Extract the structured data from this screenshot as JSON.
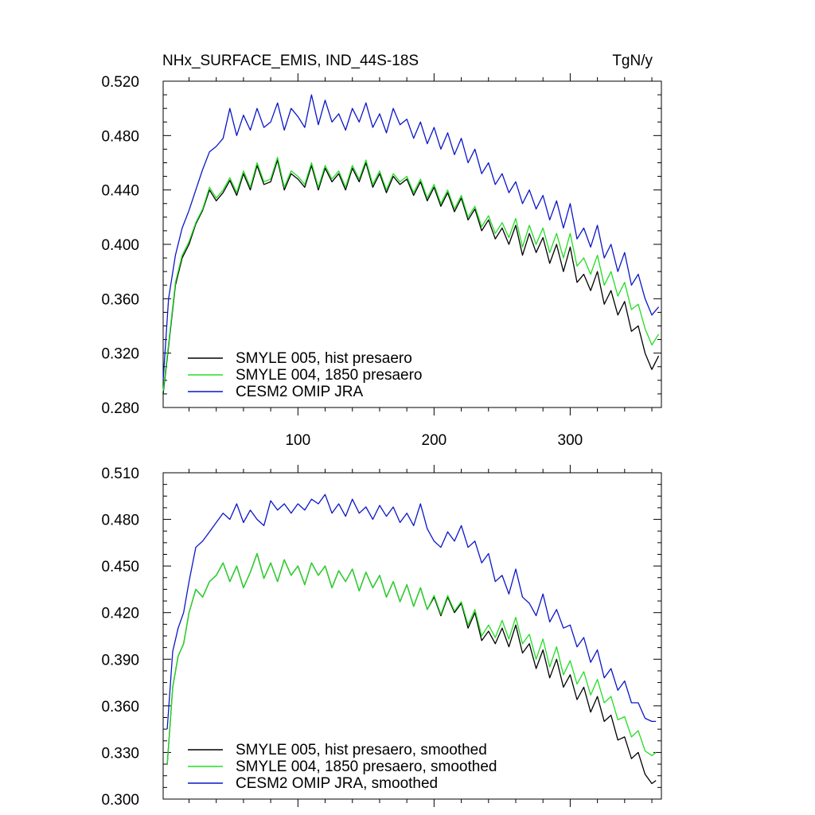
{
  "figure_title": "NHx_SURFACE_EMIS, IND_44S-18S",
  "units": "TgN/y",
  "colors": {
    "black": "#000000",
    "green": "#22dd22",
    "blue": "#0b16c8"
  },
  "chart_data": [
    {
      "type": "line",
      "title": "NHx_SURFACE_EMIS, IND_44S-18S",
      "units_label": "TgN/y",
      "xlabel": "",
      "ylabel": "",
      "xlim": [
        1,
        367
      ],
      "ylim": [
        0.28,
        0.52
      ],
      "xticks": [
        100,
        200,
        300
      ],
      "xtick_labels": [
        "100",
        "200",
        "300"
      ],
      "yticks": [
        0.28,
        0.32,
        0.36,
        0.4,
        0.44,
        0.48,
        0.52
      ],
      "ytick_labels": [
        "0.280",
        "0.320",
        "0.360",
        "0.400",
        "0.440",
        "0.480",
        "0.520"
      ],
      "legend_position": "bottom-left",
      "series": [
        {
          "name": "SMYLE 005, hist presaero",
          "color": "#000000",
          "x": [
            1,
            5,
            10,
            15,
            20,
            25,
            30,
            35,
            40,
            45,
            50,
            55,
            60,
            65,
            70,
            75,
            80,
            85,
            90,
            95,
            100,
            105,
            110,
            115,
            120,
            125,
            130,
            135,
            140,
            145,
            150,
            155,
            160,
            165,
            170,
            175,
            180,
            185,
            190,
            195,
            200,
            205,
            210,
            215,
            220,
            225,
            230,
            235,
            240,
            245,
            250,
            255,
            260,
            265,
            270,
            275,
            280,
            285,
            290,
            295,
            300,
            305,
            310,
            315,
            320,
            325,
            330,
            335,
            340,
            345,
            350,
            355,
            360,
            365
          ],
          "y": [
            0.29,
            0.325,
            0.37,
            0.39,
            0.4,
            0.415,
            0.425,
            0.44,
            0.432,
            0.438,
            0.447,
            0.436,
            0.452,
            0.44,
            0.458,
            0.444,
            0.446,
            0.462,
            0.44,
            0.452,
            0.448,
            0.442,
            0.458,
            0.44,
            0.456,
            0.446,
            0.452,
            0.44,
            0.456,
            0.446,
            0.46,
            0.442,
            0.452,
            0.438,
            0.45,
            0.444,
            0.448,
            0.436,
            0.446,
            0.432,
            0.442,
            0.428,
            0.438,
            0.424,
            0.434,
            0.418,
            0.426,
            0.41,
            0.418,
            0.404,
            0.412,
            0.4,
            0.414,
            0.392,
            0.408,
            0.394,
            0.405,
            0.386,
            0.4,
            0.38,
            0.398,
            0.372,
            0.378,
            0.366,
            0.38,
            0.356,
            0.366,
            0.348,
            0.358,
            0.336,
            0.34,
            0.32,
            0.308,
            0.318
          ]
        },
        {
          "name": "SMYLE 004, 1850 presaero",
          "color": "#22dd22",
          "x": [
            1,
            5,
            10,
            15,
            20,
            25,
            30,
            35,
            40,
            45,
            50,
            55,
            60,
            65,
            70,
            75,
            80,
            85,
            90,
            95,
            100,
            105,
            110,
            115,
            120,
            125,
            130,
            135,
            140,
            145,
            150,
            155,
            160,
            165,
            170,
            175,
            180,
            185,
            190,
            195,
            200,
            205,
            210,
            215,
            220,
            225,
            230,
            235,
            240,
            245,
            250,
            255,
            260,
            265,
            270,
            275,
            280,
            285,
            290,
            295,
            300,
            305,
            310,
            315,
            320,
            325,
            330,
            335,
            340,
            345,
            350,
            355,
            360,
            365
          ],
          "y": [
            0.292,
            0.327,
            0.372,
            0.392,
            0.402,
            0.416,
            0.426,
            0.442,
            0.434,
            0.44,
            0.449,
            0.438,
            0.454,
            0.442,
            0.46,
            0.446,
            0.448,
            0.464,
            0.442,
            0.454,
            0.45,
            0.444,
            0.46,
            0.442,
            0.458,
            0.448,
            0.454,
            0.442,
            0.458,
            0.448,
            0.462,
            0.444,
            0.454,
            0.44,
            0.452,
            0.446,
            0.45,
            0.438,
            0.448,
            0.434,
            0.444,
            0.43,
            0.44,
            0.426,
            0.436,
            0.42,
            0.428,
            0.413,
            0.421,
            0.408,
            0.416,
            0.405,
            0.419,
            0.398,
            0.414,
            0.4,
            0.412,
            0.394,
            0.408,
            0.39,
            0.408,
            0.384,
            0.39,
            0.378,
            0.392,
            0.37,
            0.38,
            0.362,
            0.372,
            0.352,
            0.356,
            0.338,
            0.326,
            0.334
          ]
        },
        {
          "name": "CESM2 OMIP JRA",
          "color": "#0b16c8",
          "x": [
            1,
            5,
            10,
            15,
            20,
            25,
            30,
            35,
            40,
            45,
            50,
            55,
            60,
            65,
            70,
            75,
            80,
            85,
            90,
            95,
            100,
            105,
            110,
            115,
            120,
            125,
            130,
            135,
            140,
            145,
            150,
            155,
            160,
            165,
            170,
            175,
            180,
            185,
            190,
            195,
            200,
            205,
            210,
            215,
            220,
            225,
            230,
            235,
            240,
            245,
            250,
            255,
            260,
            265,
            270,
            275,
            280,
            285,
            290,
            295,
            300,
            305,
            310,
            315,
            320,
            325,
            330,
            335,
            340,
            345,
            350,
            355,
            360,
            365
          ],
          "y": [
            0.3,
            0.36,
            0.392,
            0.412,
            0.425,
            0.44,
            0.455,
            0.468,
            0.472,
            0.478,
            0.5,
            0.48,
            0.495,
            0.484,
            0.5,
            0.486,
            0.49,
            0.504,
            0.484,
            0.5,
            0.494,
            0.486,
            0.51,
            0.488,
            0.506,
            0.49,
            0.496,
            0.484,
            0.5,
            0.49,
            0.504,
            0.486,
            0.496,
            0.482,
            0.5,
            0.488,
            0.492,
            0.478,
            0.49,
            0.474,
            0.486,
            0.47,
            0.482,
            0.466,
            0.478,
            0.46,
            0.47,
            0.452,
            0.46,
            0.444,
            0.452,
            0.438,
            0.446,
            0.43,
            0.44,
            0.426,
            0.436,
            0.418,
            0.432,
            0.412,
            0.43,
            0.404,
            0.412,
            0.398,
            0.414,
            0.39,
            0.4,
            0.38,
            0.394,
            0.37,
            0.378,
            0.36,
            0.348,
            0.354
          ]
        }
      ]
    },
    {
      "type": "line",
      "title": "",
      "xlabel": "",
      "ylabel": "",
      "xlim": [
        1,
        367
      ],
      "ylim": [
        0.3,
        0.51
      ],
      "xticks": [
        100,
        200,
        300
      ],
      "xtick_labels": [],
      "yticks": [
        0.3,
        0.33,
        0.36,
        0.39,
        0.42,
        0.45,
        0.48,
        0.51
      ],
      "ytick_labels": [
        "0.300",
        "0.330",
        "0.360",
        "0.390",
        "0.420",
        "0.450",
        "0.480",
        "0.510"
      ],
      "legend_position": "bottom-left",
      "series": [
        {
          "name": "SMYLE 005, hist presaero, smoothed",
          "color": "#000000",
          "x": [
            4,
            8,
            12,
            16,
            20,
            25,
            30,
            35,
            40,
            45,
            50,
            55,
            60,
            65,
            70,
            75,
            80,
            85,
            90,
            95,
            100,
            105,
            110,
            115,
            120,
            125,
            130,
            135,
            140,
            145,
            150,
            155,
            160,
            165,
            170,
            175,
            180,
            185,
            190,
            195,
            200,
            205,
            210,
            215,
            220,
            225,
            230,
            235,
            240,
            245,
            250,
            255,
            260,
            265,
            270,
            275,
            280,
            285,
            290,
            295,
            300,
            305,
            310,
            315,
            320,
            325,
            330,
            335,
            340,
            345,
            350,
            355,
            360,
            363
          ],
          "y": [
            0.322,
            0.372,
            0.392,
            0.4,
            0.42,
            0.435,
            0.43,
            0.44,
            0.444,
            0.452,
            0.44,
            0.45,
            0.436,
            0.446,
            0.458,
            0.442,
            0.452,
            0.44,
            0.454,
            0.444,
            0.45,
            0.438,
            0.452,
            0.444,
            0.45,
            0.436,
            0.447,
            0.44,
            0.448,
            0.434,
            0.446,
            0.436,
            0.444,
            0.43,
            0.44,
            0.427,
            0.438,
            0.424,
            0.436,
            0.422,
            0.43,
            0.418,
            0.43,
            0.42,
            0.426,
            0.41,
            0.42,
            0.402,
            0.408,
            0.4,
            0.41,
            0.398,
            0.412,
            0.394,
            0.4,
            0.384,
            0.396,
            0.378,
            0.39,
            0.372,
            0.38,
            0.364,
            0.372,
            0.356,
            0.366,
            0.35,
            0.354,
            0.338,
            0.34,
            0.326,
            0.33,
            0.316,
            0.31,
            0.312
          ]
        },
        {
          "name": "SMYLE 004, 1850 presaero, smoothed",
          "color": "#22dd22",
          "x": [
            4,
            8,
            12,
            16,
            20,
            25,
            30,
            35,
            40,
            45,
            50,
            55,
            60,
            65,
            70,
            75,
            80,
            85,
            90,
            95,
            100,
            105,
            110,
            115,
            120,
            125,
            130,
            135,
            140,
            145,
            150,
            155,
            160,
            165,
            170,
            175,
            180,
            185,
            190,
            195,
            200,
            205,
            210,
            215,
            220,
            225,
            230,
            235,
            240,
            245,
            250,
            255,
            260,
            265,
            270,
            275,
            280,
            285,
            290,
            295,
            300,
            305,
            310,
            315,
            320,
            325,
            330,
            335,
            340,
            345,
            350,
            355,
            360,
            363
          ],
          "y": [
            0.322,
            0.372,
            0.392,
            0.4,
            0.42,
            0.435,
            0.43,
            0.44,
            0.444,
            0.452,
            0.44,
            0.45,
            0.436,
            0.446,
            0.458,
            0.442,
            0.452,
            0.44,
            0.454,
            0.444,
            0.45,
            0.438,
            0.452,
            0.444,
            0.45,
            0.436,
            0.447,
            0.44,
            0.448,
            0.434,
            0.446,
            0.436,
            0.444,
            0.43,
            0.44,
            0.427,
            0.438,
            0.424,
            0.436,
            0.422,
            0.431,
            0.419,
            0.431,
            0.421,
            0.427,
            0.412,
            0.422,
            0.405,
            0.412,
            0.404,
            0.415,
            0.403,
            0.417,
            0.4,
            0.406,
            0.39,
            0.403,
            0.385,
            0.398,
            0.38,
            0.389,
            0.374,
            0.382,
            0.367,
            0.377,
            0.362,
            0.366,
            0.351,
            0.353,
            0.34,
            0.344,
            0.331,
            0.328,
            0.33
          ]
        },
        {
          "name": "CESM2 OMIP JRA, smoothed",
          "color": "#0b16c8",
          "x": [
            4,
            8,
            12,
            16,
            20,
            25,
            30,
            35,
            40,
            45,
            50,
            55,
            60,
            65,
            70,
            75,
            80,
            85,
            90,
            95,
            100,
            105,
            110,
            115,
            120,
            125,
            130,
            135,
            140,
            145,
            150,
            155,
            160,
            165,
            170,
            175,
            180,
            185,
            190,
            195,
            200,
            205,
            210,
            215,
            220,
            225,
            230,
            235,
            240,
            245,
            250,
            255,
            260,
            265,
            270,
            275,
            280,
            285,
            290,
            295,
            300,
            305,
            310,
            315,
            320,
            325,
            330,
            335,
            340,
            345,
            350,
            355,
            360,
            363
          ],
          "y": [
            0.345,
            0.395,
            0.41,
            0.42,
            0.44,
            0.462,
            0.466,
            0.472,
            0.478,
            0.484,
            0.48,
            0.49,
            0.478,
            0.486,
            0.48,
            0.476,
            0.492,
            0.486,
            0.49,
            0.484,
            0.49,
            0.486,
            0.493,
            0.49,
            0.496,
            0.484,
            0.49,
            0.482,
            0.493,
            0.484,
            0.488,
            0.48,
            0.489,
            0.482,
            0.488,
            0.478,
            0.484,
            0.476,
            0.49,
            0.474,
            0.466,
            0.462,
            0.472,
            0.466,
            0.476,
            0.462,
            0.466,
            0.452,
            0.458,
            0.44,
            0.444,
            0.432,
            0.448,
            0.43,
            0.426,
            0.418,
            0.432,
            0.414,
            0.422,
            0.41,
            0.412,
            0.398,
            0.404,
            0.388,
            0.396,
            0.378,
            0.384,
            0.37,
            0.376,
            0.362,
            0.362,
            0.352,
            0.35,
            0.35
          ]
        }
      ]
    }
  ]
}
